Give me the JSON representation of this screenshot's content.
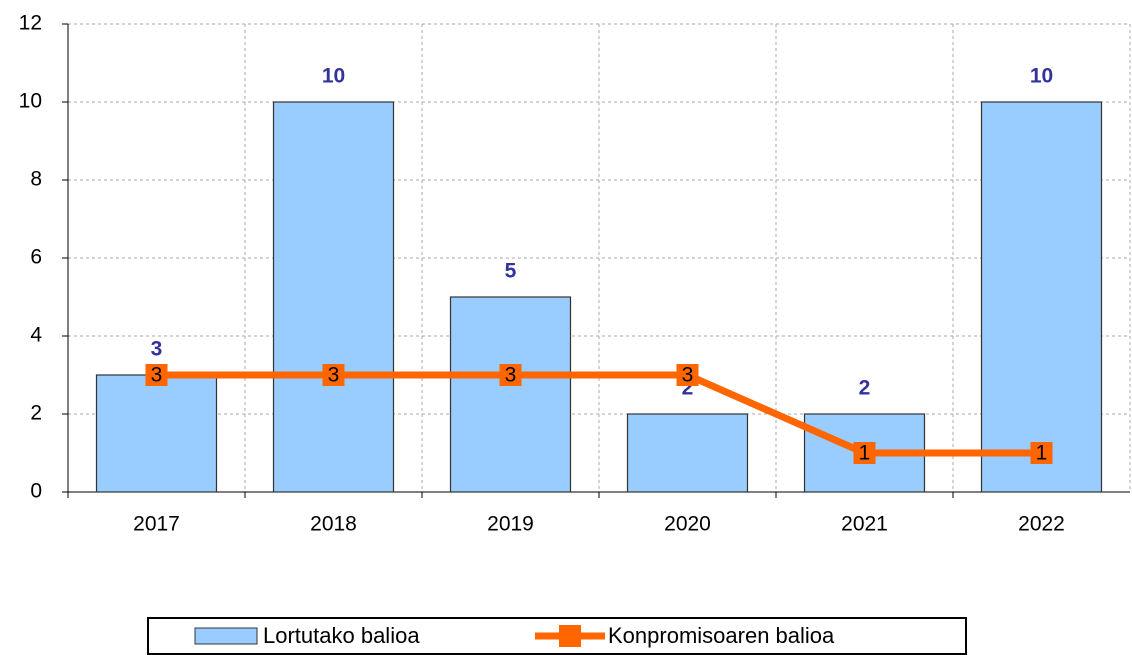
{
  "chart_data": {
    "type": "bar",
    "categories": [
      "2017",
      "2018",
      "2019",
      "2020",
      "2021",
      "2022"
    ],
    "series": [
      {
        "name": "Lortutako balioa",
        "type": "bar",
        "color": "#99ccff",
        "values": [
          3,
          10,
          5,
          2,
          2,
          10
        ]
      },
      {
        "name": "Konpromisoaren balioa",
        "type": "line",
        "color": "#ff6600",
        "values": [
          3,
          3,
          3,
          3,
          1,
          1
        ]
      }
    ],
    "ylim": [
      0,
      12
    ],
    "yticks": [
      0,
      2,
      4,
      6,
      8,
      10,
      12
    ],
    "grid": true,
    "legend": "bottom"
  }
}
